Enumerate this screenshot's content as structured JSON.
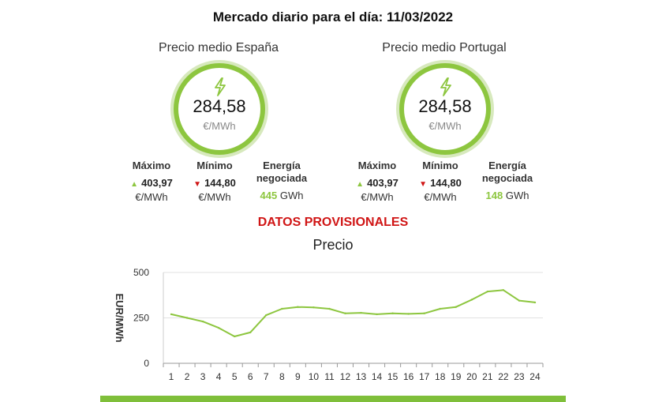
{
  "header": {
    "title": "Mercado diario para el día: 11/03/2022"
  },
  "spain": {
    "title": "Precio medio España",
    "avg_value": "284,58",
    "avg_unit": "€/MWh",
    "max_label": "Máximo",
    "max_value": "403,97",
    "max_unit": "€/MWh",
    "min_label": "Mínimo",
    "min_value": "144,80",
    "min_unit": "€/MWh",
    "energy_label_1": "Energía",
    "energy_label_2": "negociada",
    "energy_value": "445",
    "energy_unit": "GWh"
  },
  "portugal": {
    "title": "Precio medio Portugal",
    "avg_value": "284,58",
    "avg_unit": "€/MWh",
    "max_label": "Máximo",
    "max_value": "403,97",
    "max_unit": "€/MWh",
    "min_label": "Mínimo",
    "min_value": "144,80",
    "min_unit": "€/MWh",
    "energy_label_1": "Energía",
    "energy_label_2": "negociada",
    "energy_value": "148",
    "energy_unit": "GWh"
  },
  "notice": "DATOS PROVISIONALES",
  "colors": {
    "accent": "#8dc63f",
    "down": "#d01515",
    "line": "#8dc63f"
  },
  "icons": {
    "ring": "lightning-bolt-icon",
    "max": "triangle-up-icon",
    "min": "triangle-down-icon"
  },
  "chart_data": {
    "type": "line",
    "title": "Precio",
    "xlabel": "",
    "ylabel": "EUR/MWh",
    "x": [
      1,
      2,
      3,
      4,
      5,
      6,
      7,
      8,
      9,
      10,
      11,
      12,
      13,
      14,
      15,
      16,
      17,
      18,
      19,
      20,
      21,
      22,
      23,
      24
    ],
    "series": [
      {
        "values": [
          270,
          250,
          230,
          195,
          148,
          170,
          265,
          300,
          310,
          308,
          300,
          275,
          278,
          270,
          275,
          272,
          275,
          300,
          310,
          350,
          395,
          403,
          345,
          335
        ]
      }
    ],
    "ylim": [
      0,
      500
    ],
    "yticks": [
      0,
      250,
      500
    ],
    "grid": true
  }
}
